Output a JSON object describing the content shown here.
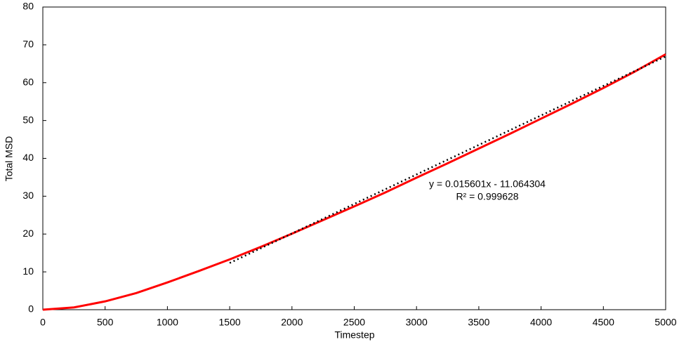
{
  "chart_data": {
    "type": "line",
    "x_label": "Timestep",
    "y_label": "Total MSD",
    "annotations": [
      "y = 0.015601x - 11.064304",
      "R² = 0.999628"
    ],
    "xlim": [
      0,
      5000
    ],
    "ylim": [
      0,
      80
    ],
    "xticks": [
      0,
      500,
      1000,
      1500,
      2000,
      2500,
      3000,
      3500,
      4000,
      4500,
      5000
    ],
    "yticks": [
      0,
      10,
      20,
      30,
      40,
      50,
      60,
      70,
      80
    ],
    "grid": false,
    "series": [
      {
        "color": "#ff0000",
        "style": "solid",
        "x": [
          0,
          250,
          500,
          750,
          1000,
          1250,
          1500,
          1750,
          2000,
          2250,
          2500,
          2750,
          3000,
          3250,
          3500,
          3750,
          4000,
          4250,
          4500,
          4750,
          5000
        ],
        "values": [
          0,
          0.6,
          2.2,
          4.4,
          7.2,
          10.2,
          13.3,
          16.6,
          20.1,
          23.7,
          27.3,
          31.0,
          34.9,
          38.7,
          42.6,
          46.5,
          50.5,
          54.5,
          58.6,
          62.9,
          67.5
        ]
      },
      {
        "color": "#000000",
        "style": "dotted",
        "x": [
          1500,
          5000
        ],
        "values": [
          12.34,
          66.94
        ]
      }
    ]
  }
}
